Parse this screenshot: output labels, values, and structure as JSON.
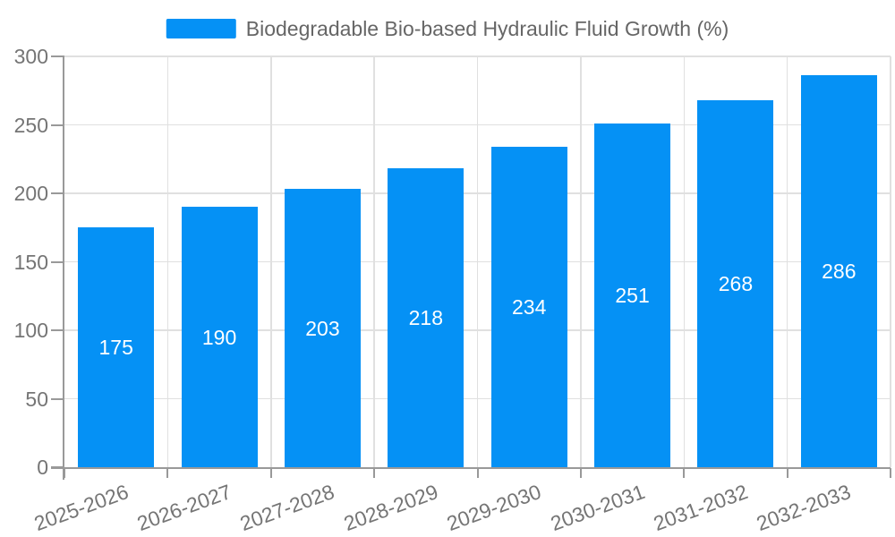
{
  "chart_data": {
    "type": "bar",
    "legend": "Biodegradable Bio-based Hydraulic Fluid Growth (%)",
    "legend_position": "top-center",
    "categories": [
      "2025-2026",
      "2026-2027",
      "2027-2028",
      "2028-2029",
      "2029-2030",
      "2030-2031",
      "2031-2032",
      "2032-2033"
    ],
    "values": [
      175,
      190,
      203,
      218,
      234,
      251,
      268,
      286
    ],
    "xlabel": "",
    "ylabel": "",
    "ylim": [
      0,
      300
    ],
    "yticks": [
      0,
      50,
      100,
      150,
      200,
      250,
      300
    ],
    "grid": true,
    "x_tick_label_rotation_deg": -20,
    "colors": {
      "bar": "#0591F5",
      "bar_value_text": "#FFFFFF",
      "grid_line": "#E0E0E0",
      "axis_line": "#999999",
      "tick_text": "#757575",
      "legend_text": "#666666",
      "background": "#FFFFFF"
    }
  }
}
